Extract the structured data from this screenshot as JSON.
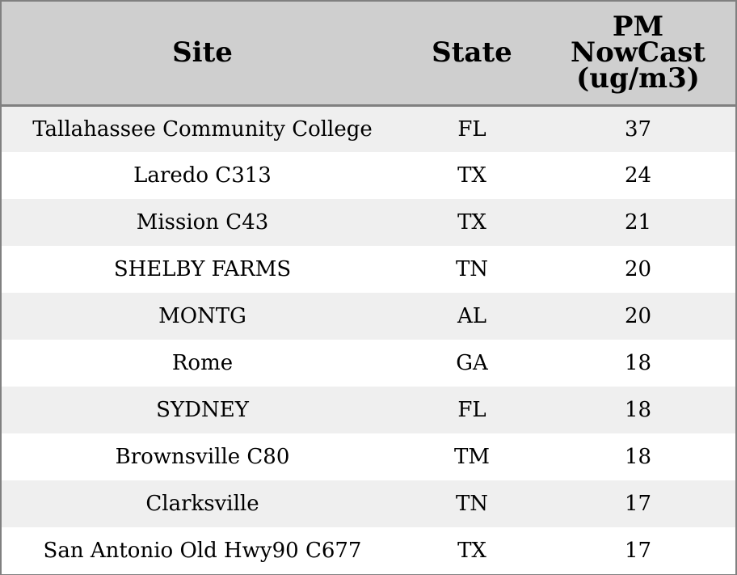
{
  "chart_data": {
    "type": "table",
    "columns": [
      "Site",
      "State",
      "PM NowCast (ug/m3)"
    ],
    "header_lines": [
      [
        "Site"
      ],
      [
        "State"
      ],
      [
        "PM",
        "NowCast",
        "(ug/m3)"
      ]
    ],
    "rows": [
      {
        "site": "Tallahassee Community College",
        "state": "FL",
        "value": "37"
      },
      {
        "site": "Laredo C313",
        "state": "TX",
        "value": "24"
      },
      {
        "site": "Mission C43",
        "state": "TX",
        "value": "21"
      },
      {
        "site": "SHELBY FARMS",
        "state": "TN",
        "value": "20"
      },
      {
        "site": "MONTG",
        "state": "AL",
        "value": "20"
      },
      {
        "site": "Rome",
        "state": "GA",
        "value": "18"
      },
      {
        "site": "SYDNEY",
        "state": "FL",
        "value": "18"
      },
      {
        "site": "Brownsville C80",
        "state": "TM",
        "value": "18"
      },
      {
        "site": "Clarksville",
        "state": "TN",
        "value": "17"
      },
      {
        "site": "San Antonio Old Hwy90 C677",
        "state": "TX",
        "value": "17"
      }
    ],
    "colors": {
      "header_background": "#cfcfcf",
      "odd_row_background": "#efefef",
      "even_row_background": "#ffffff",
      "border": "#808080"
    }
  }
}
